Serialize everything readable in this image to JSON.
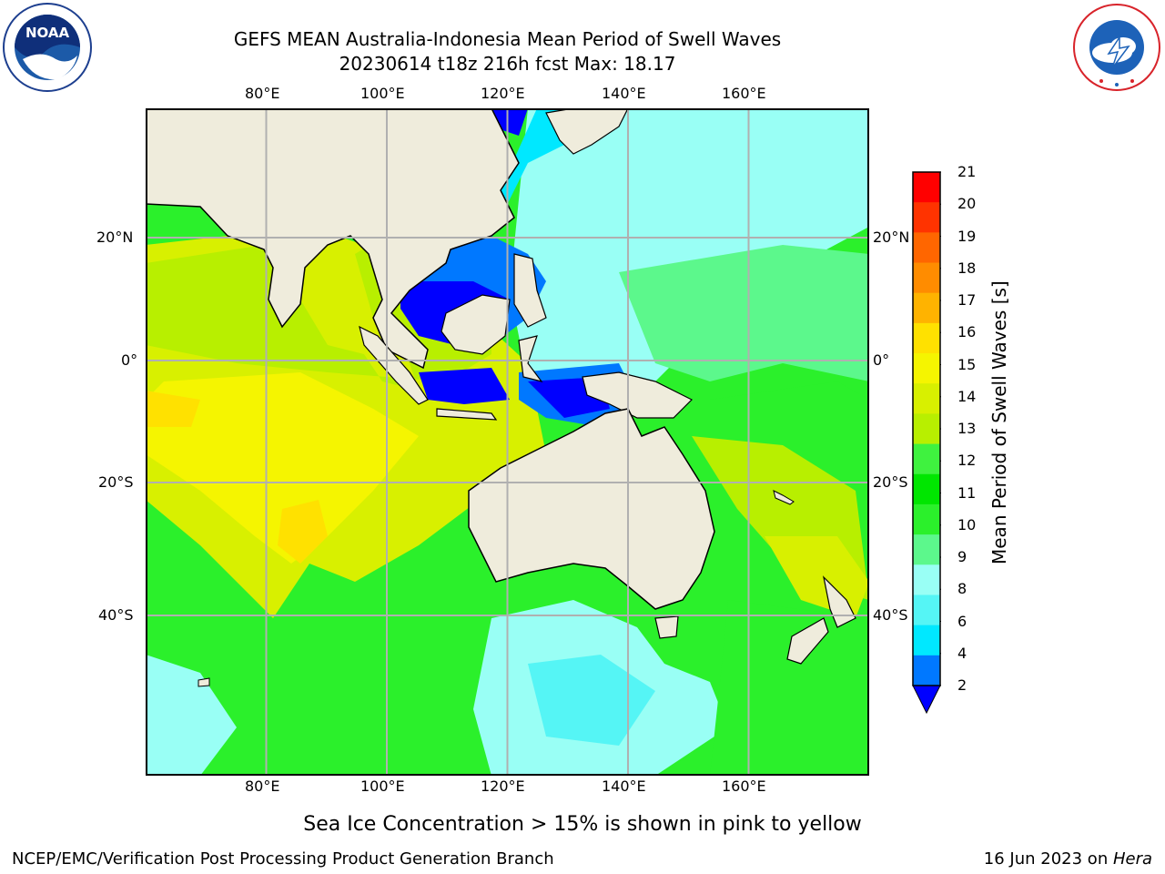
{
  "header": {
    "title_line1": "GEFS MEAN Australia-Indonesia Mean Period of Swell Waves",
    "title_line2": "20230614 t18z 216h fcst   Max: 18.17"
  },
  "logos": {
    "left": {
      "icon": "noaa-logo",
      "text": "NOAA"
    },
    "right": {
      "icon": "nws-logo",
      "text": "NATIONAL WEATHER SERVICE"
    }
  },
  "map": {
    "lon_labels": [
      "80°E",
      "100°E",
      "120°E",
      "140°E",
      "160°E"
    ],
    "lat_labels": [
      "20°N",
      "0°",
      "20°S",
      "40°S"
    ],
    "extent": {
      "lon": [
        60,
        180
      ],
      "lat": [
        -60,
        38
      ]
    },
    "land_color": "#efecdc",
    "grid_color": "#b0b0b0"
  },
  "colorbar": {
    "label": "Mean Period of Swell Waves [s]",
    "ticks": [
      "21",
      "20",
      "19",
      "18",
      "17",
      "16",
      "15",
      "14",
      "13",
      "12",
      "11",
      "10",
      "9",
      "8",
      "6",
      "4",
      "2"
    ],
    "colors": [
      "#ff0000",
      "#ff3300",
      "#ff6600",
      "#ff8c00",
      "#ffb300",
      "#ffe100",
      "#f5f500",
      "#d8f000",
      "#b8ef00",
      "#3ff23f",
      "#00e600",
      "#2bf02b",
      "#5cf88c",
      "#99fff5",
      "#55f5f5",
      "#00e8ff",
      "#0078ff"
    ],
    "extend_color": "#0000ff"
  },
  "footer": {
    "note": "Sea Ice Concentration > 15% is shown in pink to yellow",
    "credit": "NCEP/EMC/Verification Post Processing Product Generation Branch",
    "date": "16 Jun 2023 on ",
    "machine": "Hera"
  }
}
